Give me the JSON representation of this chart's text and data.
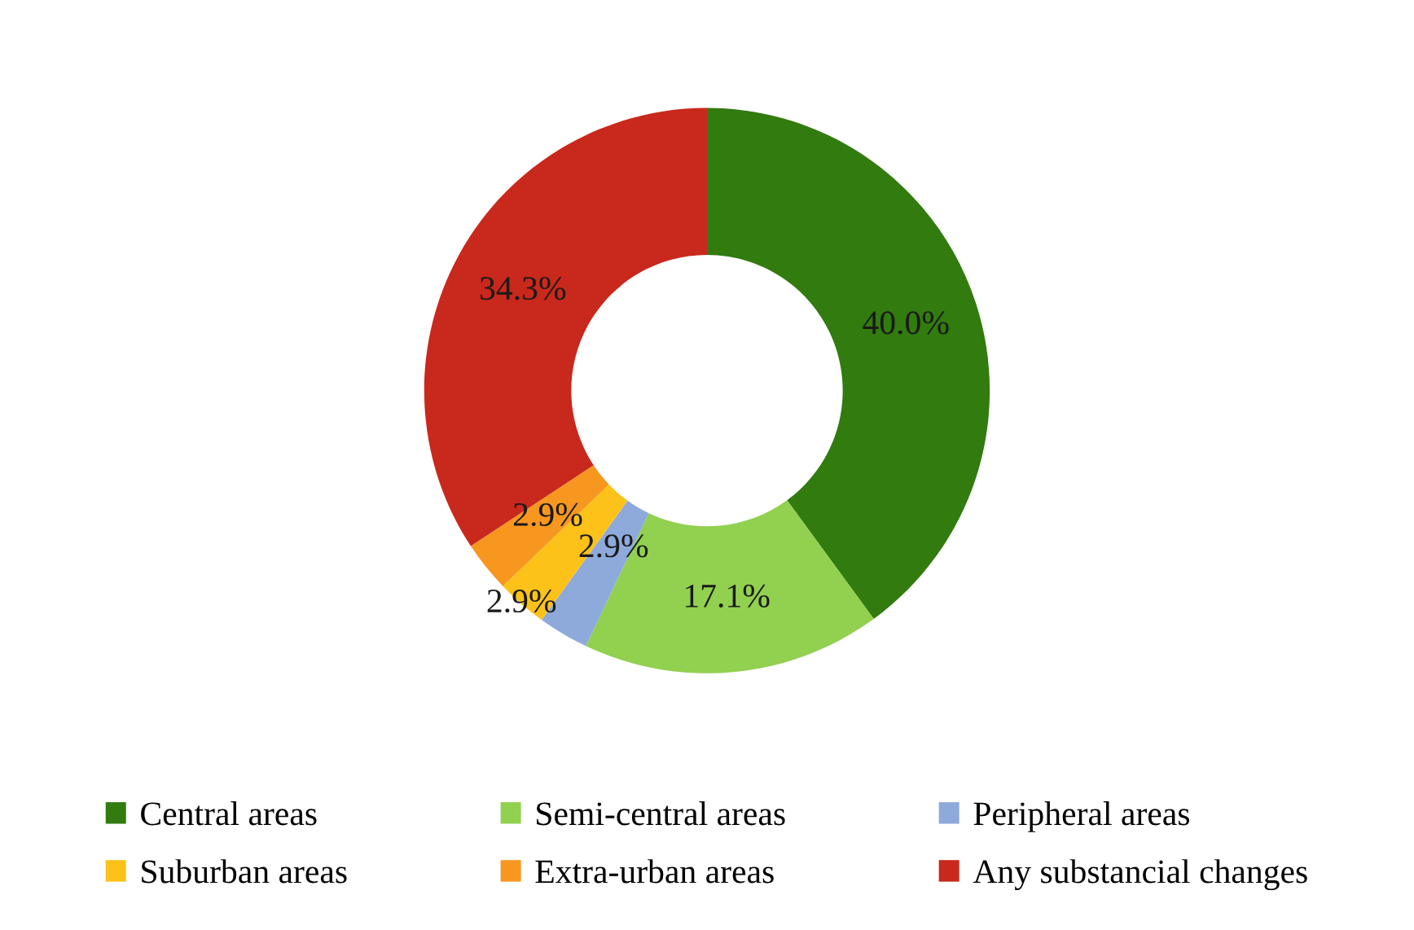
{
  "chart_data": {
    "type": "donut",
    "categories": [
      "Central areas",
      "Semi-central areas",
      "Peripheral areas",
      "Suburban areas",
      "Extra-urban areas",
      "Any substancial changes"
    ],
    "values": [
      40.0,
      17.1,
      2.9,
      2.9,
      2.9,
      34.3
    ],
    "colors": [
      "#317b0f",
      "#92d050",
      "#8eaadb",
      "#fcc21a",
      "#f7971f",
      "#c9281c"
    ],
    "value_labels": [
      "40.0%",
      "17.1%",
      "2.9%",
      "2.9%",
      "2.9%",
      "34.3%"
    ],
    "legend": "bottom"
  }
}
